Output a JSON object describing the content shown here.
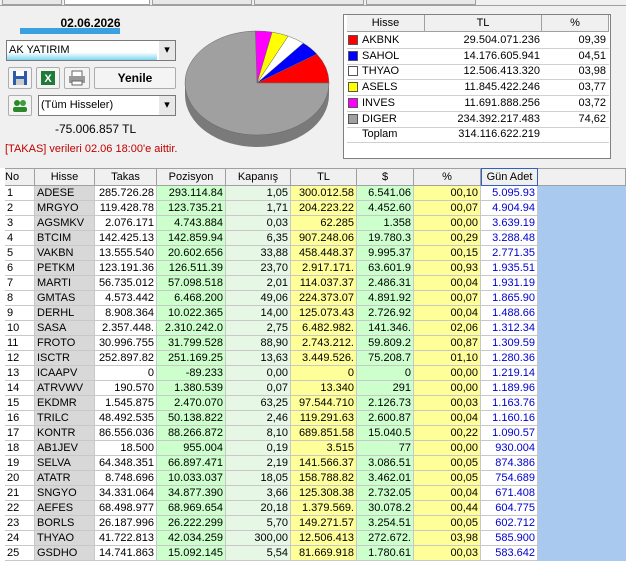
{
  "top_panel": {
    "date": "02.06.2026",
    "broker": "AK YATIRIM",
    "refresh_button": "Yenile",
    "stock_filter": "(Tüm Hisseler)",
    "net_total": "-75.006.857 TL",
    "notice": "[TAKAS] verileri 02.06 18:00'e aittir."
  },
  "pie_legend": {
    "headers": [
      "Hisse",
      "TL",
      "%"
    ],
    "rows": [
      {
        "name": "AKBNK",
        "color": "#ff0000",
        "tl": "29.504.071.236",
        "pct": "09,39"
      },
      {
        "name": "SAHOL",
        "color": "#0000ff",
        "tl": "14.176.605.941",
        "pct": "04,51"
      },
      {
        "name": "THYAO",
        "color": "#ffffff",
        "tl": "12.506.413.320",
        "pct": "03,98"
      },
      {
        "name": "ASELS",
        "color": "#ffff00",
        "tl": "11.845.422.246",
        "pct": "03,77"
      },
      {
        "name": "INVES",
        "color": "#ff00ff",
        "tl": "11.691.888.256",
        "pct": "03,72"
      },
      {
        "name": "DIGER",
        "color": "#a0a0a0",
        "tl": "234.392.217.483",
        "pct": "74,62"
      }
    ],
    "total": {
      "name": "Toplam",
      "tl": "314.116.622.219"
    }
  },
  "table": {
    "headers": [
      "No",
      "Hisse",
      "Takas",
      "Pozisyon",
      "Kapanış",
      "TL",
      "$",
      "%",
      "Gün Adet"
    ],
    "rows": [
      [
        "1",
        "ADESE",
        "285.726.28",
        "293.114.84",
        "1,05",
        "300.012.58",
        "6.541.06",
        "00,10",
        "5.095.93"
      ],
      [
        "2",
        "MRGYO",
        "119.428.78",
        "123.735.21",
        "1,71",
        "204.223.22",
        "4.452.60",
        "00,07",
        "4.904.94"
      ],
      [
        "3",
        "AGSMKV",
        "2.076.171",
        "4.743.884",
        "0,03",
        "62.285",
        "1.358",
        "00,00",
        "3.639.19"
      ],
      [
        "4",
        "BTCIM",
        "142.425.13",
        "142.859.94",
        "6,35",
        "907.248.06",
        "19.780.3",
        "00,29",
        "3.288.48"
      ],
      [
        "5",
        "VAKBN",
        "13.555.540",
        "20.602.656",
        "33,88",
        "458.448.37",
        "9.995.37",
        "00,15",
        "2.771.35"
      ],
      [
        "6",
        "PETKM",
        "123.191.36",
        "126.511.39",
        "23,70",
        "2.917.171.",
        "63.601.9",
        "00,93",
        "1.935.51"
      ],
      [
        "7",
        "MARTI",
        "56.735.012",
        "57.098.518",
        "2,01",
        "114.037.37",
        "2.486.31",
        "00,04",
        "1.931.19"
      ],
      [
        "8",
        "GMTAS",
        "4.573.442",
        "6.468.200",
        "49,06",
        "224.373.07",
        "4.891.92",
        "00,07",
        "1.865.90"
      ],
      [
        "9",
        "DERHL",
        "8.908.364",
        "10.022.365",
        "14,00",
        "125.073.43",
        "2.726.92",
        "00,04",
        "1.488.66"
      ],
      [
        "10",
        "SASA",
        "2.357.448.",
        "2.310.242.0",
        "2,75",
        "6.482.982.",
        "141.346.",
        "02,06",
        "1.312.34"
      ],
      [
        "11",
        "FROTO",
        "30.996.755",
        "31.799.528",
        "88,90",
        "2.743.212.",
        "59.809.2",
        "00,87",
        "1.309.59"
      ],
      [
        "12",
        "ISCTR",
        "252.897.82",
        "251.169.25",
        "13,63",
        "3.449.526.",
        "75.208.7",
        "01,10",
        "1.280.36"
      ],
      [
        "13",
        "ICAAPV",
        "0",
        "-89.233",
        "0,00",
        "0",
        "0",
        "00,00",
        "1.219.14"
      ],
      [
        "14",
        "ATRVWV",
        "190.570",
        "1.380.539",
        "0,07",
        "13.340",
        "291",
        "00,00",
        "1.189.96"
      ],
      [
        "15",
        "EKDMR",
        "1.545.875",
        "2.470.070",
        "63,25",
        "97.544.710",
        "2.126.73",
        "00,03",
        "1.163.76"
      ],
      [
        "16",
        "TRILC",
        "48.492.535",
        "50.138.822",
        "2,46",
        "119.291.63",
        "2.600.87",
        "00,04",
        "1.160.16"
      ],
      [
        "17",
        "KONTR",
        "86.556.036",
        "88.266.872",
        "8,10",
        "689.851.58",
        "15.040.5",
        "00,22",
        "1.090.57"
      ],
      [
        "18",
        "AB1JEV",
        "18.500",
        "955.004",
        "0,19",
        "3.515",
        "77",
        "00,00",
        "930.004"
      ],
      [
        "19",
        "SELVA",
        "64.348.351",
        "66.897.471",
        "2,19",
        "141.566.37",
        "3.086.51",
        "00,05",
        "874.386"
      ],
      [
        "20",
        "ATATR",
        "8.748.696",
        "10.033.037",
        "18,05",
        "158.788.82",
        "3.462.01",
        "00,05",
        "754.689"
      ],
      [
        "21",
        "SNGYO",
        "34.331.064",
        "34.877.390",
        "3,66",
        "125.308.38",
        "2.732.05",
        "00,04",
        "671.408"
      ],
      [
        "22",
        "AEFES",
        "68.498.977",
        "68.969.654",
        "20,18",
        "1.379.569.",
        "30.078.2",
        "00,44",
        "604.775"
      ],
      [
        "23",
        "BORLS",
        "26.187.996",
        "26.222.299",
        "5,70",
        "149.271.57",
        "3.254.51",
        "00,05",
        "602.712"
      ],
      [
        "24",
        "THYAO",
        "41.722.813",
        "42.034.259",
        "300,00",
        "12.506.413",
        "272.672.",
        "03,98",
        "585.900"
      ],
      [
        "25",
        "GSDHO",
        "14.741.863",
        "15.092.145",
        "5,54",
        "81.669.918",
        "1.780.61",
        "00,03",
        "583.642"
      ]
    ]
  }
}
